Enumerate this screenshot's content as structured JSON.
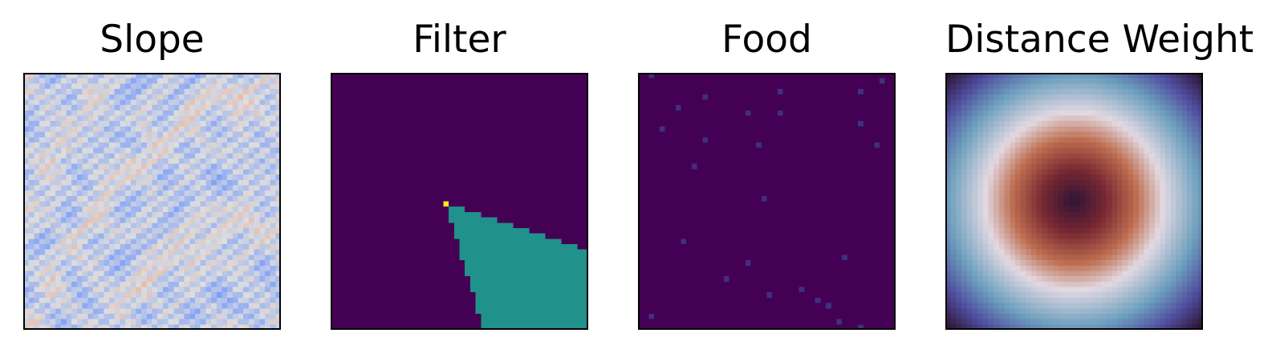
{
  "chart_data": [
    {
      "type": "heatmap",
      "title": "Slope",
      "colormap": "coolwarm",
      "grid_size": [
        48,
        48
      ],
      "value_range": [
        0.0,
        1.0
      ],
      "description": "noisy terrain slope field with ridge-like blue streaks and mostly light-blue cells; a few pale orange patches",
      "axes_visible": false
    },
    {
      "type": "heatmap",
      "title": "Filter",
      "colormap": "viridis",
      "grid_size": [
        48,
        48
      ],
      "levels": [
        0,
        1,
        2
      ],
      "origin_cell": [
        21,
        24
      ],
      "wedge_region": "teal cone opening from origin toward bottom-right corner",
      "axes_visible": false
    },
    {
      "type": "heatmap",
      "title": "Food",
      "colormap": "viridis",
      "grid_size": [
        48,
        48
      ],
      "points": [
        [
          2,
          0
        ],
        [
          45,
          1
        ],
        [
          26,
          3
        ],
        [
          41,
          3
        ],
        [
          12,
          4
        ],
        [
          7,
          6
        ],
        [
          20,
          7
        ],
        [
          26,
          7
        ],
        [
          41,
          9
        ],
        [
          4,
          10
        ],
        [
          12,
          12
        ],
        [
          44,
          13
        ],
        [
          22,
          13
        ],
        [
          10,
          17
        ],
        [
          23,
          23
        ],
        [
          8,
          31
        ],
        [
          38,
          34
        ],
        [
          20,
          35
        ],
        [
          16,
          38
        ],
        [
          30,
          40
        ],
        [
          24,
          41
        ],
        [
          33,
          42
        ],
        [
          35,
          43
        ],
        [
          2,
          45
        ],
        [
          37,
          46
        ],
        [
          41,
          47
        ]
      ],
      "axes_visible": false
    },
    {
      "type": "heatmap",
      "title": "Distance Weight",
      "colormap": "twilight_shifted",
      "grid_size": [
        48,
        48
      ],
      "pattern": "radial distance from center",
      "axes_visible": false
    }
  ]
}
